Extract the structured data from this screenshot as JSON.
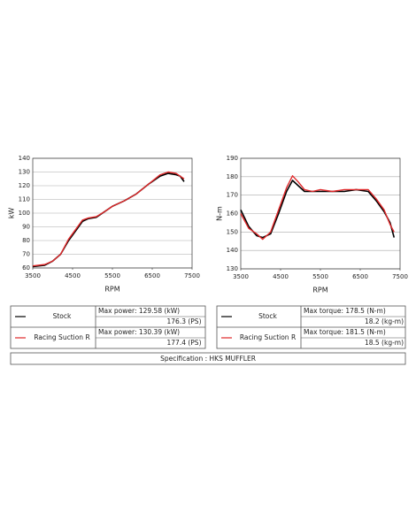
{
  "chart_data": [
    {
      "type": "line",
      "xlabel": "RPM",
      "ylabel": "kW",
      "x": [
        3500,
        3800,
        4000,
        4200,
        4400,
        4600,
        4750,
        4900,
        5100,
        5300,
        5500,
        5800,
        6100,
        6400,
        6700,
        6900,
        7100,
        7200,
        7300
      ],
      "series": [
        {
          "name": "Stock",
          "color": "#000000",
          "values": [
            61,
            62,
            65,
            70,
            80,
            88,
            94,
            96,
            97,
            101,
            105,
            109,
            114,
            121,
            127,
            129,
            128,
            127,
            123
          ]
        },
        {
          "name": "Racing Suction R",
          "color": "#e0282a",
          "values": [
            61.5,
            62.5,
            65,
            70,
            81,
            89,
            95,
            96.5,
            97.5,
            101,
            105,
            109,
            114,
            121,
            128,
            130,
            129,
            127,
            125
          ]
        }
      ],
      "xlim": [
        3500,
        7500
      ],
      "xticks": [
        3500,
        4500,
        5500,
        6500,
        7500
      ],
      "ylim": [
        60,
        140
      ],
      "yticks": [
        60,
        70,
        80,
        90,
        100,
        110,
        120,
        130,
        140
      ],
      "grid": true
    },
    {
      "type": "line",
      "xlabel": "RPM",
      "ylabel": "N-m",
      "x": [
        3500,
        3700,
        3900,
        4050,
        4250,
        4450,
        4650,
        4800,
        4950,
        5100,
        5300,
        5500,
        5800,
        6100,
        6400,
        6700,
        6900,
        7100,
        7250,
        7350
      ],
      "series": [
        {
          "name": "Stock",
          "color": "#000000",
          "values": [
            162,
            153,
            148,
            147,
            149,
            160,
            172,
            178,
            175,
            172,
            172,
            172,
            172,
            172,
            173,
            172,
            167,
            161,
            155,
            147
          ]
        },
        {
          "name": "Racing Suction R",
          "color": "#e0282a",
          "values": [
            160,
            152,
            149,
            146,
            150,
            162,
            174,
            180.5,
            177,
            173,
            172,
            173,
            172,
            173,
            173,
            173,
            168,
            162,
            154,
            150
          ]
        }
      ],
      "xlim": [
        3500,
        7500
      ],
      "xticks": [
        3500,
        4500,
        5500,
        6500,
        7500
      ],
      "ylim": [
        130,
        190
      ],
      "yticks": [
        130,
        140,
        150,
        160,
        170,
        180,
        190
      ],
      "grid": true
    }
  ],
  "tables": [
    {
      "rows": [
        {
          "name": "Stock",
          "lines": [
            "Max power: 129.58 (kW)",
            "176.3 (PS)"
          ]
        },
        {
          "name": "Racing Suction R",
          "lines": [
            "Max power: 130.39 (kW)",
            "177.4 (PS)"
          ]
        }
      ]
    },
    {
      "rows": [
        {
          "name": "Stock",
          "lines": [
            "Max torque: 178.5 (N-m)",
            "18.2 (kg-m)"
          ]
        },
        {
          "name": "Racing Suction R",
          "lines": [
            "Max torque: 181.5 (N-m)",
            "18.5 (kg-m)"
          ]
        }
      ]
    }
  ],
  "specification": "Specification : HKS MUFFLER"
}
